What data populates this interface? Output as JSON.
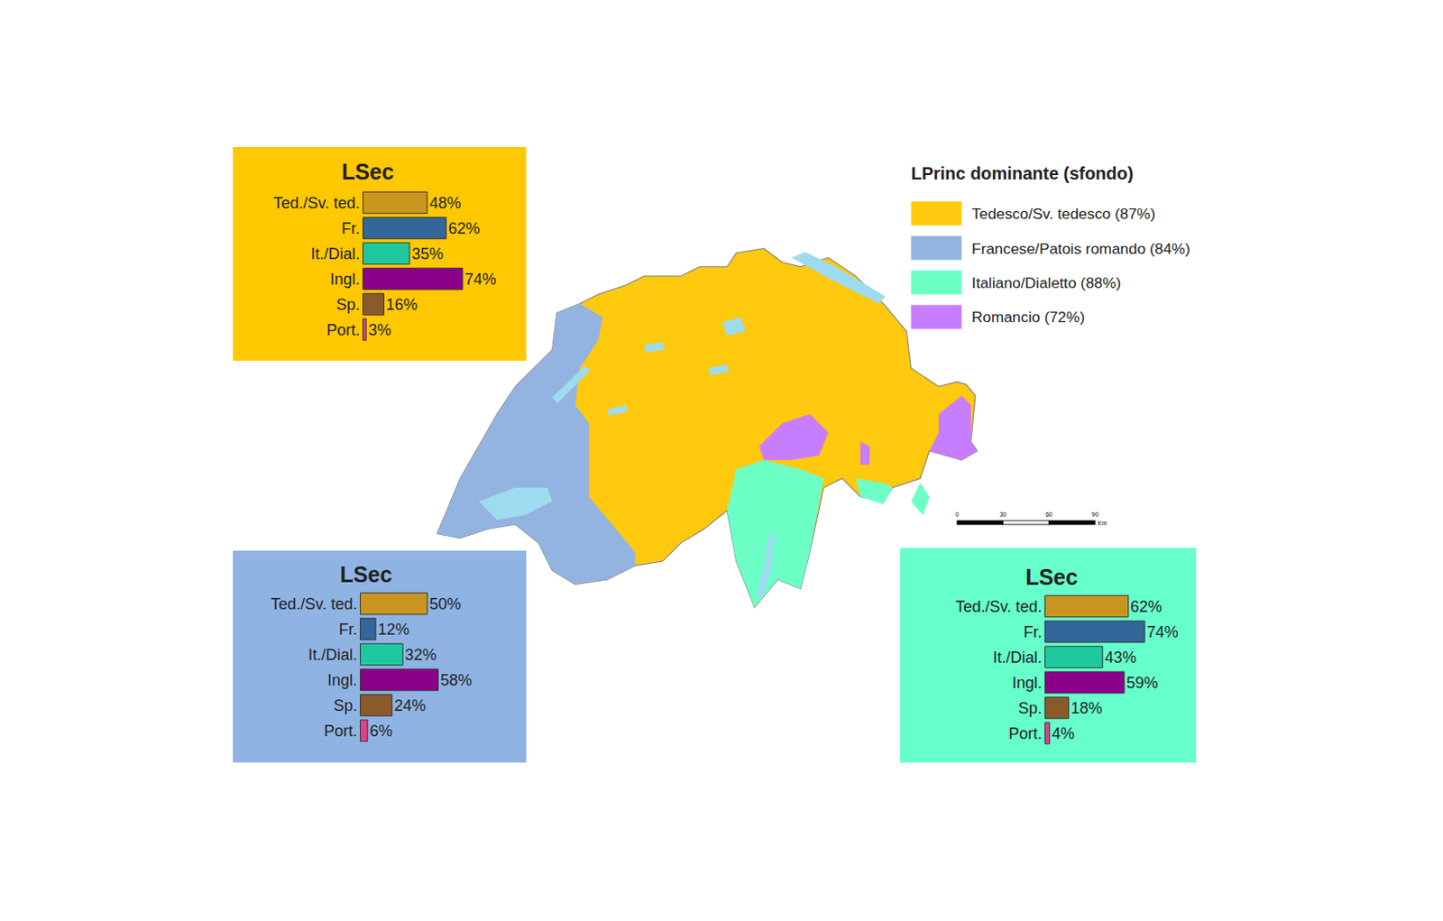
{
  "legend": {
    "title": "LPrinc dominante (sfondo)",
    "items": [
      {
        "label": "Tedesco/Sv. tedesco (87%)",
        "color": "#ffc90e"
      },
      {
        "label": "Francese/Patois romando (84%)",
        "color": "#93b3e0"
      },
      {
        "label": "Italiano/Dialetto (88%)",
        "color": "#6cffc6"
      },
      {
        "label": "Romancio (72%)",
        "color": "#c77dff"
      }
    ]
  },
  "scale_bar": {
    "ticks": [
      0,
      30,
      60,
      90
    ],
    "unit": "Km"
  },
  "chart_data": [
    {
      "type": "bar",
      "title": "LSec",
      "orientation": "horizontal",
      "categories": [
        "Ted./Sv. ted.",
        "Fr.",
        "It./Dial.",
        "Ingl.",
        "Sp.",
        "Port."
      ],
      "values": [
        48,
        62,
        35,
        74,
        16,
        3
      ],
      "value_labels": [
        "48%",
        "62%",
        "35%",
        "74%",
        "16%",
        "3%"
      ],
      "colors": [
        "#c8961e",
        "#336699",
        "#1fc9a0",
        "#8b008b",
        "#8b5a2b",
        "#e0408a"
      ],
      "xlim": [
        0,
        100
      ],
      "data_labels": true,
      "tick_labels": "y"
    },
    {
      "type": "bar",
      "title": "LSec",
      "orientation": "horizontal",
      "categories": [
        "Ted./Sv. ted.",
        "Fr.",
        "It./Dial.",
        "Ingl.",
        "Sp.",
        "Port."
      ],
      "values": [
        50,
        12,
        32,
        58,
        24,
        6
      ],
      "value_labels": [
        "50%",
        "12%",
        "32%",
        "58%",
        "24%",
        "6%"
      ],
      "colors": [
        "#c8961e",
        "#336699",
        "#1fc9a0",
        "#8b008b",
        "#8b5a2b",
        "#e0408a"
      ],
      "xlim": [
        0,
        100
      ],
      "data_labels": true,
      "tick_labels": "y"
    },
    {
      "type": "bar",
      "title": "LSec",
      "orientation": "horizontal",
      "categories": [
        "Ted./Sv. ted.",
        "Fr.",
        "It./Dial.",
        "Ingl.",
        "Sp.",
        "Port."
      ],
      "values": [
        62,
        74,
        43,
        59,
        18,
        4
      ],
      "value_labels": [
        "62%",
        "74%",
        "43%",
        "59%",
        "18%",
        "4%"
      ],
      "colors": [
        "#c8961e",
        "#336699",
        "#1fc9a0",
        "#8b008b",
        "#8b5a2b",
        "#e0408a"
      ],
      "xlim": [
        0,
        100
      ],
      "data_labels": true,
      "tick_labels": "y"
    }
  ]
}
